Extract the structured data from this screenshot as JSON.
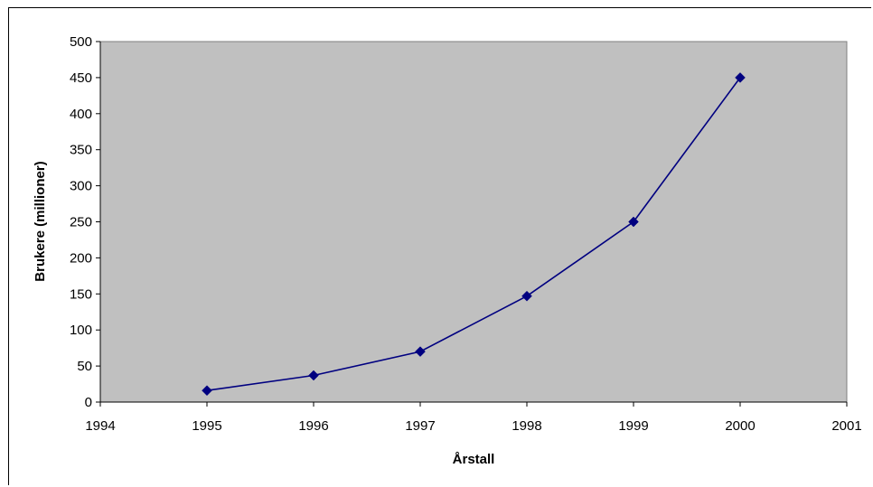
{
  "chart_data": {
    "type": "line",
    "title": "",
    "xlabel": "Årstall",
    "ylabel": "Brukere (millioner)",
    "x_ticks": [
      1994,
      1995,
      1996,
      1997,
      1998,
      1999,
      2000,
      2001
    ],
    "y_ticks": [
      0,
      50,
      100,
      150,
      200,
      250,
      300,
      350,
      400,
      450,
      500
    ],
    "xlim": [
      1994,
      2001
    ],
    "ylim": [
      0,
      500
    ],
    "grid": false,
    "legend": "none",
    "series": [
      {
        "x": [
          1995,
          1996,
          1997,
          1998,
          1999,
          2000
        ],
        "values": [
          16,
          37,
          70,
          147,
          250,
          450
        ],
        "color": "#000080",
        "marker": "diamond"
      }
    ],
    "colors": {
      "plot_background": "#c0c0c0",
      "line": "#000080"
    }
  }
}
